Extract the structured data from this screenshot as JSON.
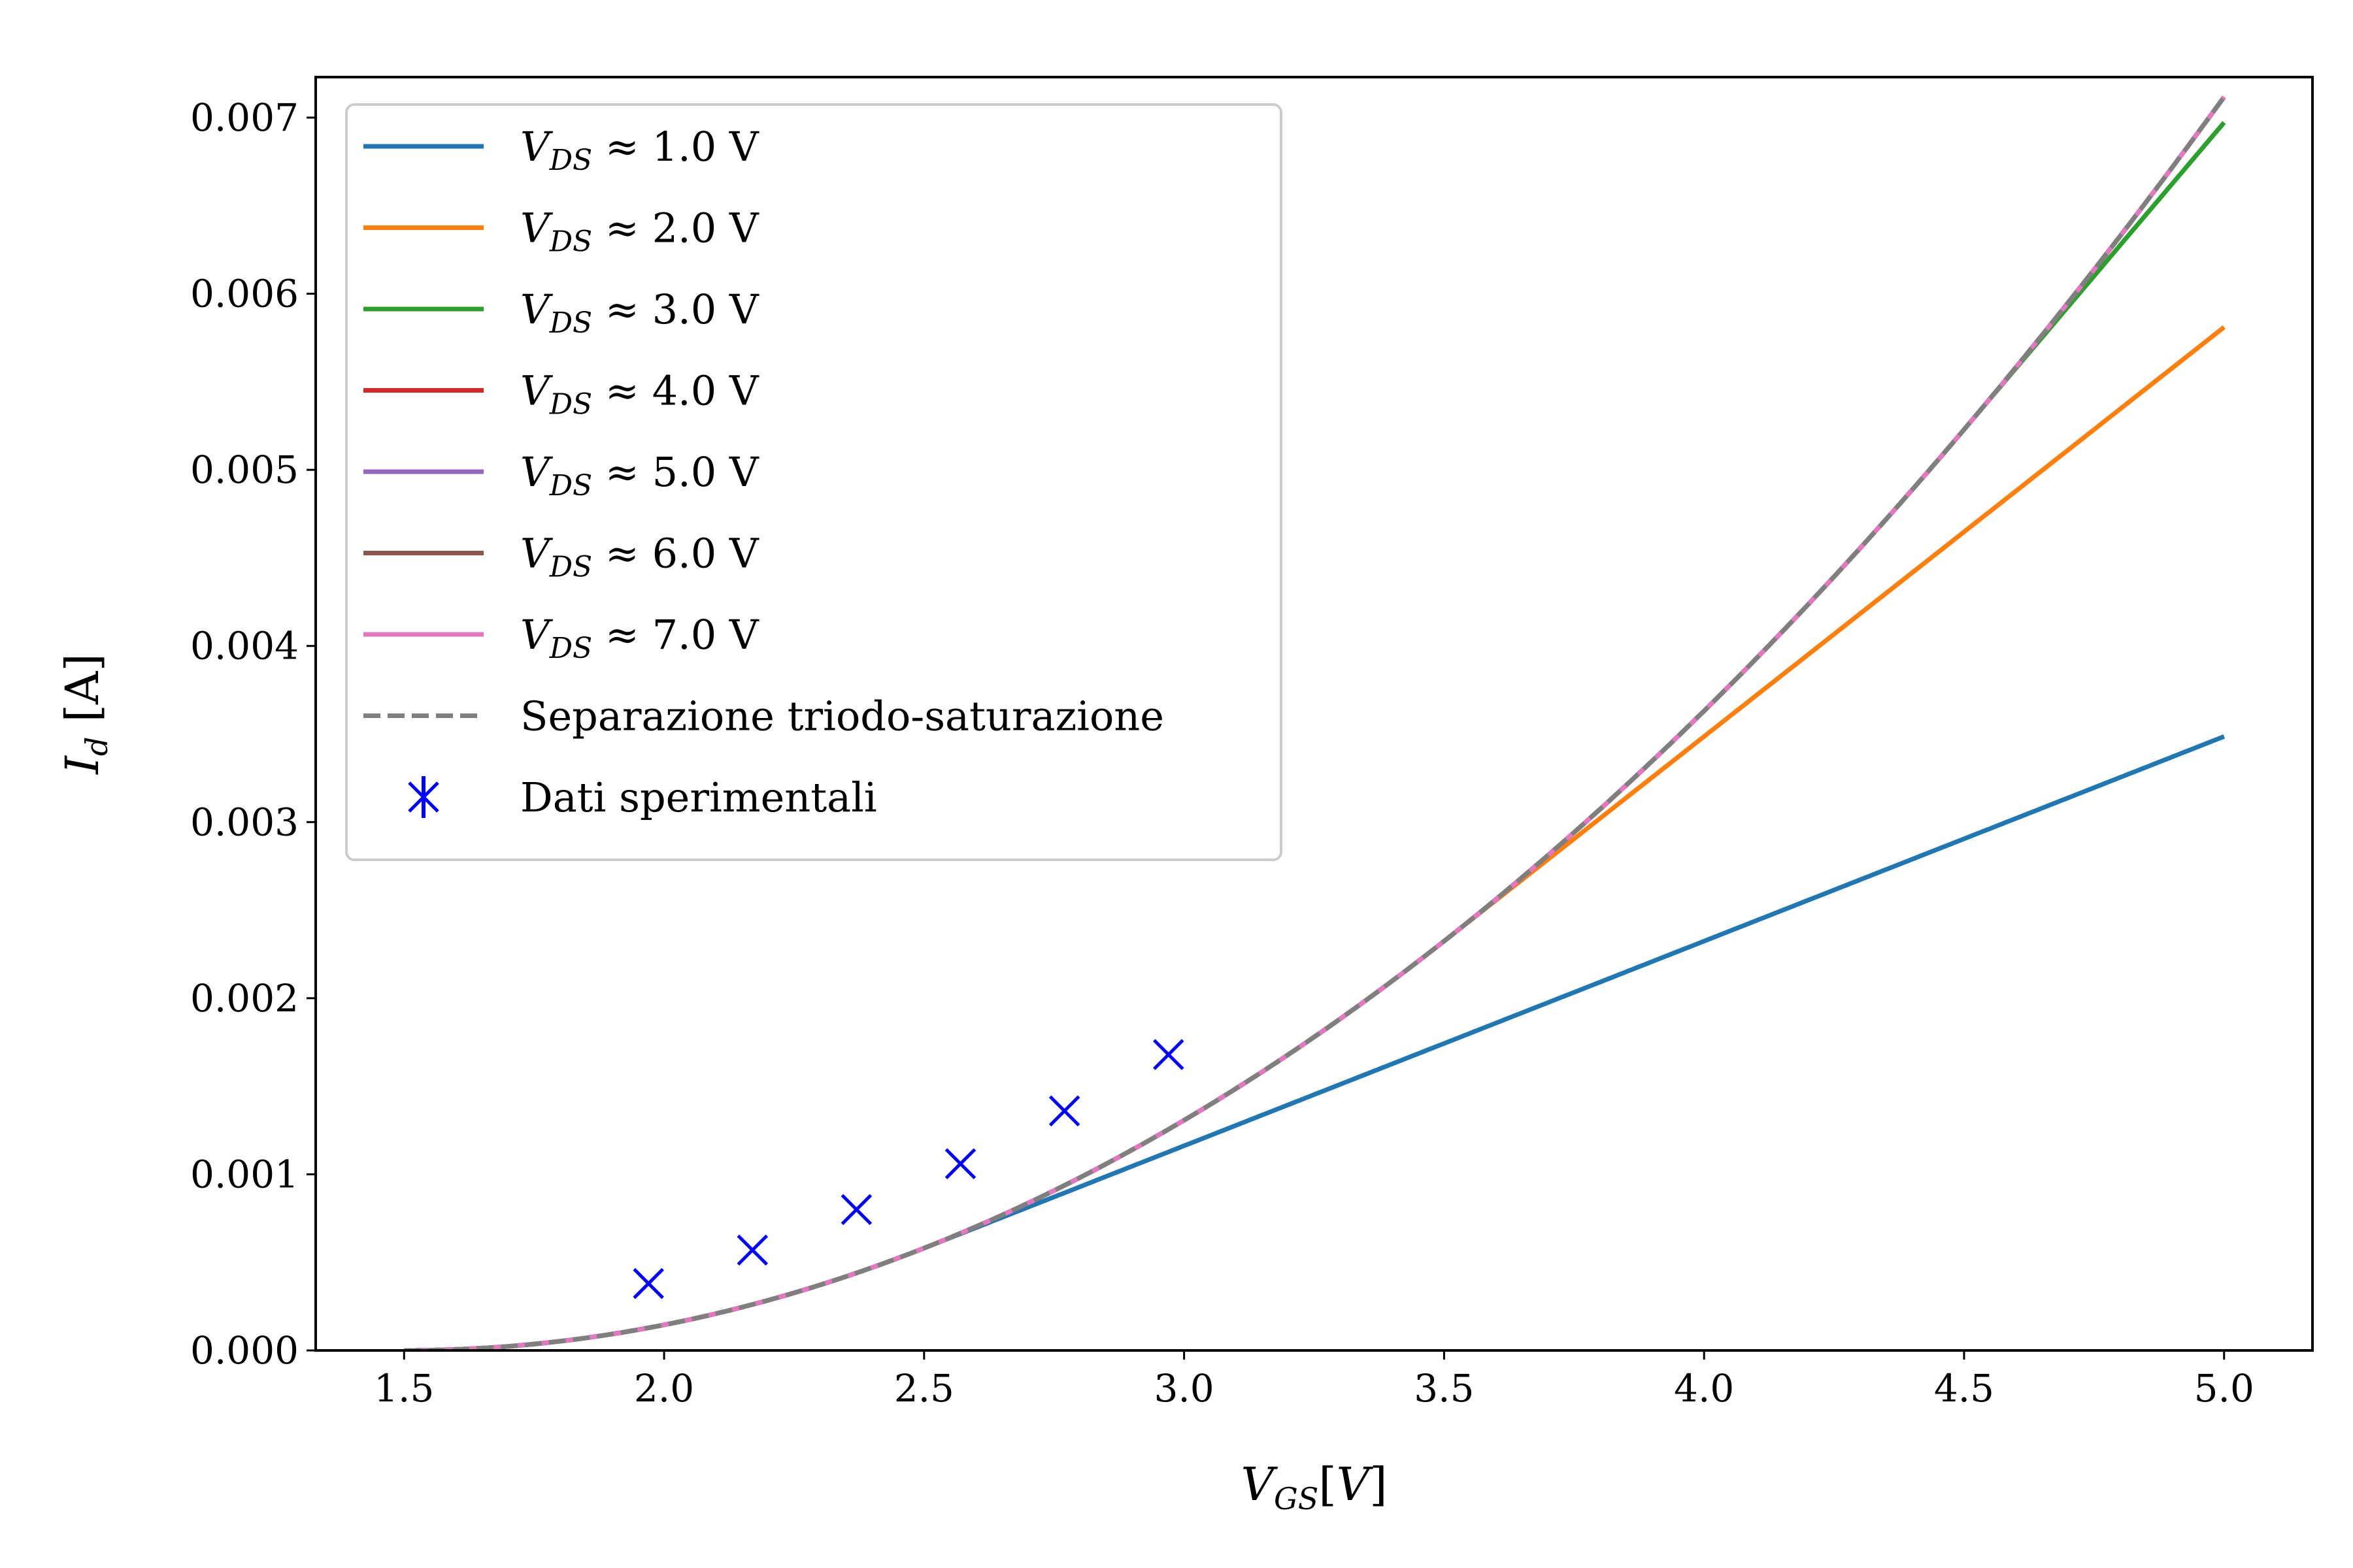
{
  "chart_data": {
    "type": "line",
    "xlabel": "V_GS[V]",
    "ylabel": "I_d [A]",
    "xlim": [
      1.33,
      5.17
    ],
    "ylim": [
      0.0,
      0.00723
    ],
    "xticks": [
      1.5,
      2.0,
      2.5,
      3.0,
      3.5,
      4.0,
      4.5,
      5.0
    ],
    "xtick_labels": [
      "1.5",
      "2.0",
      "2.5",
      "3.0",
      "3.5",
      "4.0",
      "4.5",
      "5.0"
    ],
    "yticks": [
      0.0,
      0.001,
      0.002,
      0.003,
      0.004,
      0.005,
      0.006,
      0.007
    ],
    "ytick_labels": [
      "0.000",
      "0.001",
      "0.002",
      "0.003",
      "0.004",
      "0.005",
      "0.006",
      "0.007"
    ],
    "grid": false,
    "legend_position": "upper-left",
    "model": {
      "k": 0.000581,
      "vth": 1.5
    },
    "series": [
      {
        "name": "V_DS ≈ 1.0 V",
        "vds": 1.0,
        "color": "#1f77b4",
        "x_range": [
          1.5,
          5.0
        ]
      },
      {
        "name": "V_DS ≈ 2.0 V",
        "vds": 2.0,
        "color": "#ff7f0e",
        "x_range": [
          1.5,
          5.0
        ]
      },
      {
        "name": "V_DS ≈ 3.0 V",
        "vds": 3.0,
        "color": "#2ca02c",
        "x_range": [
          1.5,
          5.0
        ]
      },
      {
        "name": "V_DS ≈ 4.0 V",
        "vds": 4.0,
        "color": "#d62728",
        "x_range": [
          1.5,
          5.0
        ]
      },
      {
        "name": "V_DS ≈ 5.0 V",
        "vds": 5.0,
        "color": "#9467bd",
        "x_range": [
          1.5,
          5.0
        ]
      },
      {
        "name": "V_DS ≈ 6.0 V",
        "vds": 6.0,
        "color": "#8c564b",
        "x_range": [
          1.5,
          5.0
        ]
      },
      {
        "name": "V_DS ≈ 7.0 V",
        "vds": 7.0,
        "color": "#e377c2",
        "x_range": [
          1.5,
          5.0
        ]
      }
    ],
    "separation": {
      "name": "Separazione triodo-saturazione",
      "color": "#7f7f7f",
      "style": "dashed",
      "x_range": [
        1.5,
        5.0
      ]
    },
    "experimental": {
      "name": "Dati sperimentali",
      "color": "#0000ff",
      "marker": "x",
      "points": [
        {
          "x": 1.97,
          "y": 0.00038
        },
        {
          "x": 2.17,
          "y": 0.00057
        },
        {
          "x": 2.37,
          "y": 0.0008
        },
        {
          "x": 2.57,
          "y": 0.00106
        },
        {
          "x": 2.77,
          "y": 0.00136
        },
        {
          "x": 2.97,
          "y": 0.00168
        }
      ]
    }
  }
}
